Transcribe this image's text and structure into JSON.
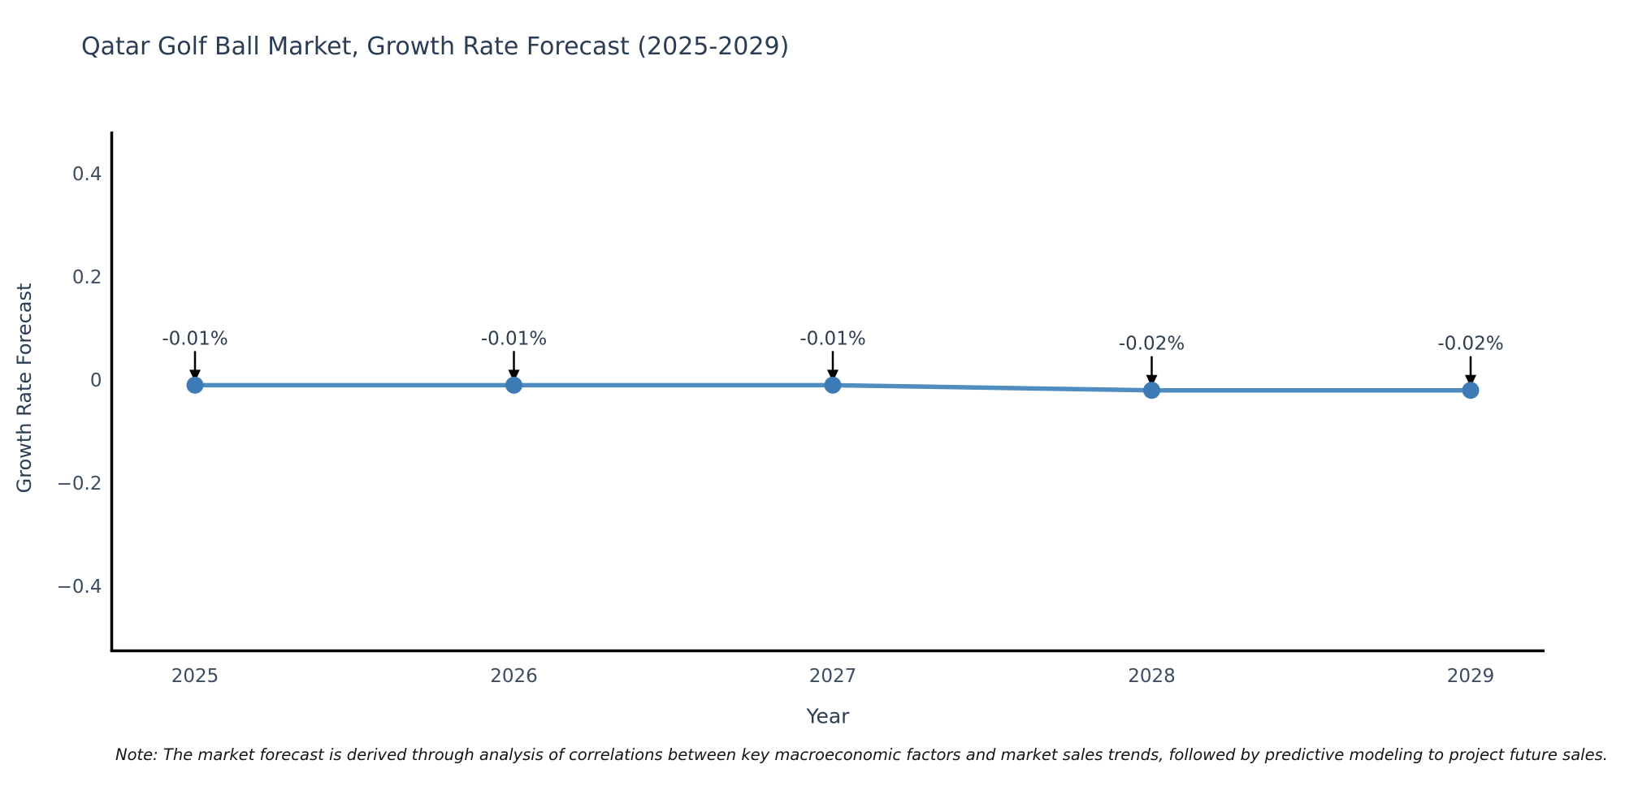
{
  "title": "Qatar Golf Ball Market, Growth Rate Forecast (2025-2029)",
  "note": "Note: The market forecast is derived through analysis of correlations between key macroeconomic factors and market sales trends, followed by predictive modeling to project future sales.",
  "chart_data": {
    "type": "line",
    "title": "Qatar Golf Ball Market, Growth Rate Forecast (2025-2029)",
    "x": [
      2025,
      2026,
      2027,
      2028,
      2029
    ],
    "x_tick_labels": [
      "2025",
      "2026",
      "2027",
      "2028",
      "2029"
    ],
    "series": [
      {
        "name": "Growth Rate Forecast",
        "values": [
          -0.01,
          -0.01,
          -0.01,
          -0.02,
          -0.02
        ],
        "point_labels": [
          "-0.01%",
          "-0.01%",
          "-0.01%",
          "-0.02%",
          "-0.02%"
        ]
      }
    ],
    "xlabel": "Year",
    "ylabel": "Growth Rate Forecast",
    "y_ticks": [
      0.4,
      0.2,
      0,
      -0.2,
      -0.4
    ],
    "y_tick_labels": [
      "0.4",
      "0.2",
      "0",
      "−0.2",
      "−0.4"
    ],
    "ylim": [
      -0.52,
      0.48
    ],
    "grid": false,
    "legend": false,
    "annotations": "each point labeled with its value and a downward black arrow",
    "colors": {
      "line": "#4f8cc0",
      "marker": "#3c7bb5",
      "axis_line": "#000000",
      "arrow": "#000000",
      "title_text": "#2b3d54",
      "tick_text": "#3d4d61",
      "point_label_text": "#2e3e50",
      "background": "#ffffff"
    }
  }
}
